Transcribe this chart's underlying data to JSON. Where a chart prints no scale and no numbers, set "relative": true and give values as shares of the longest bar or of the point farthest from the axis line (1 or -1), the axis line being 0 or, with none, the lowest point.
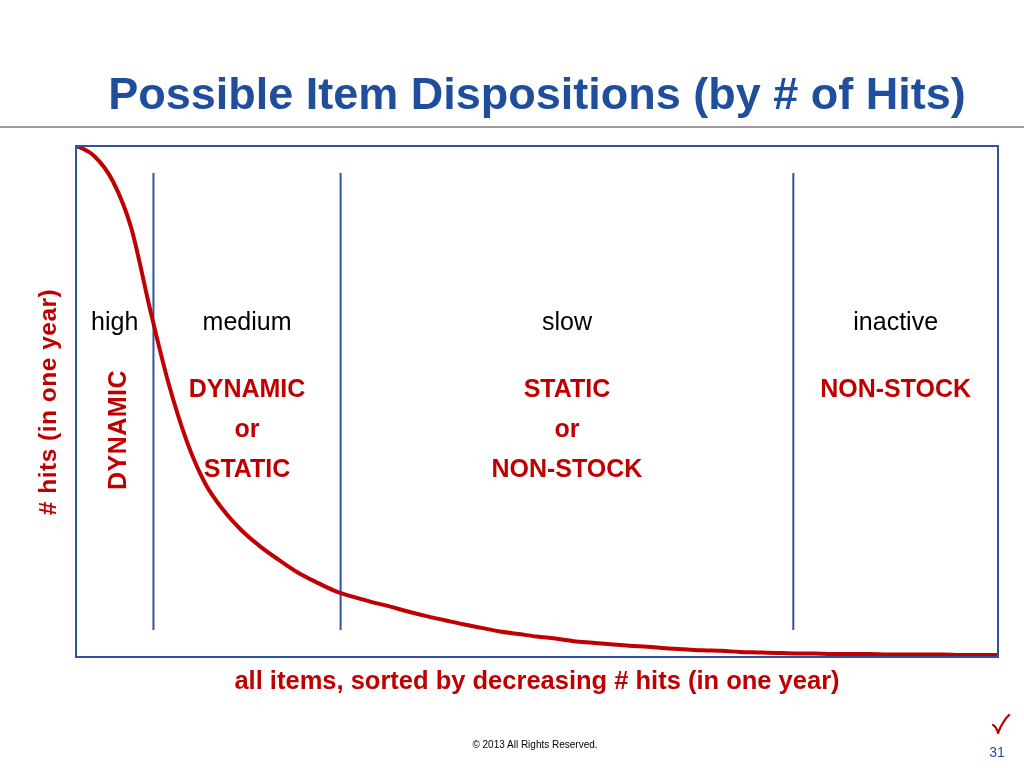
{
  "chart_data": {
    "type": "line",
    "title": "Possible Item Dispositions (by # of Hits)",
    "xlabel": "all items, sorted by decreasing # hits (in one year)",
    "ylabel": "# hits (in one year)",
    "relative": true,
    "tick_labels": false,
    "marker": "none",
    "line_style": "solid",
    "categories": [
      null,
      null,
      null,
      null,
      null,
      null,
      null,
      null,
      null,
      null,
      null,
      null,
      null,
      null,
      null,
      null,
      null,
      null,
      null,
      null,
      null,
      null,
      null,
      null,
      null,
      null,
      null,
      null,
      null,
      null,
      null,
      null,
      null,
      null,
      null,
      null,
      null,
      null,
      null,
      null,
      null,
      null,
      null,
      null,
      null,
      null,
      null,
      null,
      null,
      null,
      null
    ],
    "series": [
      {
        "color": "#c00000",
        "values": [
          1,
          0.98,
          0.931,
          0.839,
          0.683,
          0.538,
          0.423,
          0.34,
          0.287,
          0.247,
          0.216,
          0.19,
          0.166,
          0.147,
          0.13,
          0.118,
          0.108,
          0.099,
          0.089,
          0.08,
          0.072,
          0.064,
          0.057,
          0.05,
          0.045,
          0.04,
          0.036,
          0.031,
          0.028,
          0.025,
          0.022,
          0.02,
          0.017,
          0.015,
          0.013,
          0.012,
          0.01,
          0.009,
          0.008,
          0.007,
          0.007,
          0.006,
          0.006,
          0.006,
          0.005,
          0.005,
          0.005,
          0.005,
          0.004,
          0.004,
          0.004
        ]
      }
    ],
    "annotations": [
      "high",
      "medium",
      "slow",
      "inactive",
      "DYNAMIC",
      "DYNAMIC\nor\nSTATIC",
      "STATIC\nor\nNON-STOCK",
      "NON-STOCK",
      "© 2013 All Rights Reserved.",
      "31"
    ]
  }
}
